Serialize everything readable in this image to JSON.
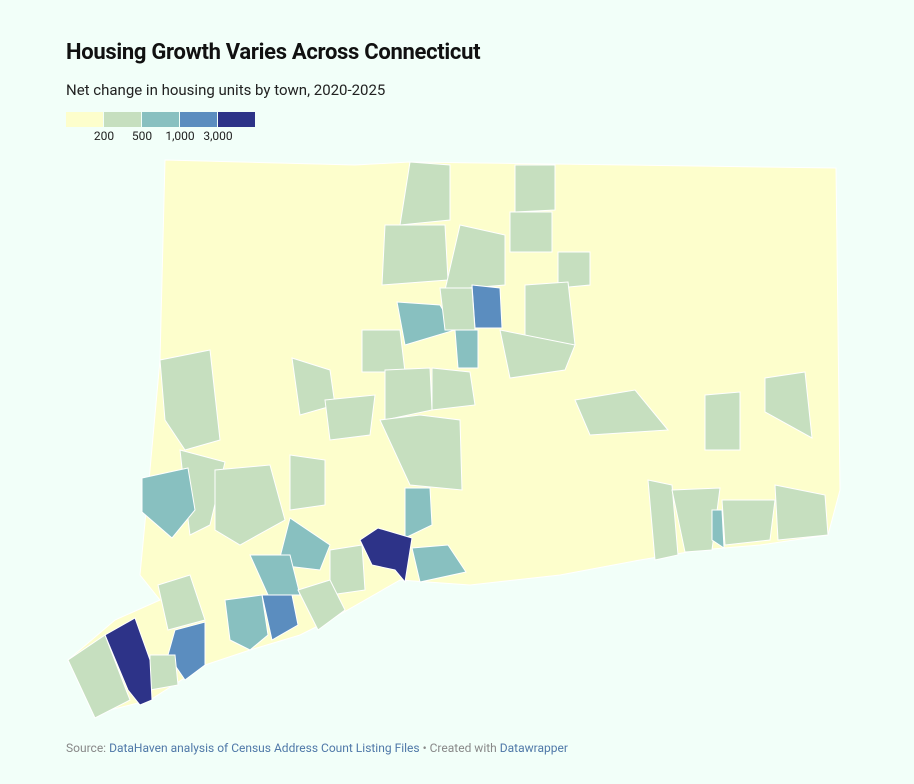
{
  "header": {
    "title": "Housing Growth Varies Across Connecticut",
    "subtitle": "Net change in housing units by town, 2020-2025"
  },
  "legend": {
    "colors": [
      "#fdfecc",
      "#c6dfbf",
      "#88c0c0",
      "#5b8dbf",
      "#2d3388"
    ],
    "ticks": [
      200,
      500,
      {
        "value": 1000,
        "label": "1,000"
      },
      {
        "value": 3000,
        "label": "3,000"
      }
    ]
  },
  "footer": {
    "prefix": "Source:",
    "source": "DataHaven analysis of Census Address Count Listing Files",
    "middle": "• Created with",
    "tool": "Datawrapper"
  }
}
